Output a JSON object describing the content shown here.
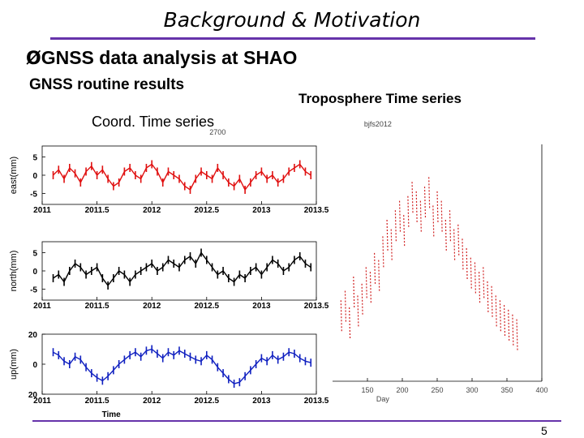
{
  "slide": {
    "title": "Background & Motivation",
    "bullet_mark": "Ø",
    "bullet_text": "GNSS data analysis at SHAO",
    "left_heading": "GNSS routine results",
    "right_heading": "Troposphere Time series",
    "coord_label": "Coord. Time series",
    "page_number": "5"
  },
  "chart_data": [
    {
      "type": "line",
      "panel": "east",
      "title": "2700",
      "ylabel": "east(mm)",
      "xlabel": "",
      "xlim": [
        2011,
        2013.5
      ],
      "ylim": [
        -8,
        8
      ],
      "xticks": [
        "2011",
        "2011.5",
        "2012",
        "2012.5",
        "2013",
        "2013.5"
      ],
      "yticks": [
        "5",
        "0",
        "-5"
      ],
      "color": "#e01010",
      "series": [
        {
          "x": [
            2011.1,
            2011.15,
            2011.2,
            2011.25,
            2011.3,
            2011.35,
            2011.4,
            2011.45,
            2011.5,
            2011.55,
            2011.6,
            2011.65,
            2011.7,
            2011.75,
            2011.8,
            2011.85,
            2011.9,
            2011.95,
            2012,
            2012.05,
            2012.1,
            2012.15,
            2012.2,
            2012.25,
            2012.3,
            2012.35,
            2012.4,
            2012.45,
            2012.5,
            2012.55,
            2012.6,
            2012.65,
            2012.7,
            2012.75,
            2012.8,
            2012.85,
            2012.9,
            2012.95,
            2013,
            2013.05,
            2013.1,
            2013.15,
            2013.2,
            2013.25,
            2013.3,
            2013.35,
            2013.4,
            2013.45
          ],
          "values": [
            0,
            1.5,
            -1,
            2,
            0.5,
            -2,
            1,
            2.5,
            0,
            1.5,
            -1,
            -3,
            -2,
            1,
            2,
            0,
            -1,
            2,
            3,
            1,
            -2,
            1,
            0,
            -1,
            -3,
            -4,
            -1,
            1,
            0,
            -1,
            2,
            0,
            -2,
            -3,
            -1,
            -4,
            -2,
            0,
            1,
            -1,
            0,
            -2,
            -1,
            1,
            2,
            3,
            1,
            0
          ]
        }
      ]
    },
    {
      "type": "line",
      "panel": "north",
      "ylabel": "north(mm)",
      "xlabel": "",
      "xlim": [
        2011,
        2013.5
      ],
      "ylim": [
        -8,
        8
      ],
      "xticks": [
        "2011",
        "2011.5",
        "2012",
        "2012.5",
        "2013",
        "2013.5"
      ],
      "yticks": [
        "5",
        "0",
        "-5"
      ],
      "color": "#000000",
      "series": [
        {
          "x": [
            2011.1,
            2011.15,
            2011.2,
            2011.25,
            2011.3,
            2011.35,
            2011.4,
            2011.45,
            2011.5,
            2011.55,
            2011.6,
            2011.65,
            2011.7,
            2011.75,
            2011.8,
            2011.85,
            2011.9,
            2011.95,
            2012,
            2012.05,
            2012.1,
            2012.15,
            2012.2,
            2012.25,
            2012.3,
            2012.35,
            2012.4,
            2012.45,
            2012.5,
            2012.55,
            2012.6,
            2012.65,
            2012.7,
            2012.75,
            2012.8,
            2012.85,
            2012.9,
            2012.95,
            2013,
            2013.05,
            2013.1,
            2013.15,
            2013.2,
            2013.25,
            2013.3,
            2013.35,
            2013.4,
            2013.45
          ],
          "values": [
            -2,
            -1,
            -3,
            0,
            2,
            1,
            -1,
            0,
            1,
            -2,
            -4,
            -2,
            0,
            -1,
            -3,
            -1,
            0,
            1,
            2,
            0,
            1,
            3,
            2,
            1,
            3,
            4,
            2,
            5,
            3,
            1,
            -1,
            0,
            -2,
            -3,
            -1,
            -2,
            0,
            1,
            -1,
            1,
            3,
            2,
            0,
            1,
            3,
            4,
            2,
            1
          ]
        }
      ]
    },
    {
      "type": "line",
      "panel": "up",
      "ylabel": "up(mm)",
      "xlabel": "Time",
      "xlim": [
        2011,
        2013.5
      ],
      "ylim": [
        -20,
        20
      ],
      "xticks": [
        "2011",
        "2011.5",
        "2012",
        "2012.5",
        "2013",
        "2013.5"
      ],
      "yticks": [
        "20",
        "0",
        "20"
      ],
      "color": "#1020c0",
      "series": [
        {
          "x": [
            2011.1,
            2011.15,
            2011.2,
            2011.25,
            2011.3,
            2011.35,
            2011.4,
            2011.45,
            2011.5,
            2011.55,
            2011.6,
            2011.65,
            2011.7,
            2011.75,
            2011.8,
            2011.85,
            2011.9,
            2011.95,
            2012,
            2012.05,
            2012.1,
            2012.15,
            2012.2,
            2012.25,
            2012.3,
            2012.35,
            2012.4,
            2012.45,
            2012.5,
            2012.55,
            2012.6,
            2012.65,
            2012.7,
            2012.75,
            2012.8,
            2012.85,
            2012.9,
            2012.95,
            2013,
            2013.05,
            2013.1,
            2013.15,
            2013.2,
            2013.25,
            2013.3,
            2013.35,
            2013.4,
            2013.45
          ],
          "values": [
            8,
            6,
            2,
            0,
            5,
            3,
            -2,
            -6,
            -9,
            -11,
            -8,
            -4,
            0,
            3,
            6,
            8,
            5,
            9,
            10,
            7,
            4,
            8,
            6,
            9,
            7,
            5,
            3,
            2,
            6,
            3,
            -2,
            -6,
            -10,
            -13,
            -12,
            -8,
            -4,
            0,
            4,
            2,
            6,
            3,
            5,
            8,
            7,
            4,
            2,
            1
          ]
        }
      ]
    },
    {
      "type": "scatter",
      "panel": "troposphere",
      "title": "bjfs2012",
      "xlabel": "Day",
      "ylabel": "",
      "xlim": [
        100,
        400
      ],
      "xticks": [
        "150",
        "200",
        "250",
        "300",
        "350",
        "400"
      ],
      "color": "#d02020",
      "series": [
        {
          "x": [
            112,
            118,
            124,
            130,
            136,
            142,
            148,
            154,
            160,
            166,
            172,
            178,
            184,
            190,
            196,
            202,
            208,
            214,
            220,
            226,
            232,
            238,
            244,
            250,
            256,
            262,
            268,
            274,
            280,
            286,
            292,
            298,
            304,
            310,
            316,
            322,
            328,
            334,
            340,
            346,
            352,
            358,
            364
          ],
          "values": [
            0.28,
            0.32,
            0.25,
            0.38,
            0.3,
            0.35,
            0.42,
            0.4,
            0.48,
            0.45,
            0.55,
            0.62,
            0.58,
            0.66,
            0.7,
            0.64,
            0.72,
            0.78,
            0.74,
            0.7,
            0.76,
            0.8,
            0.68,
            0.74,
            0.7,
            0.62,
            0.66,
            0.58,
            0.6,
            0.54,
            0.5,
            0.46,
            0.44,
            0.4,
            0.42,
            0.36,
            0.34,
            0.3,
            0.28,
            0.26,
            0.24,
            0.22,
            0.2
          ]
        }
      ]
    }
  ]
}
